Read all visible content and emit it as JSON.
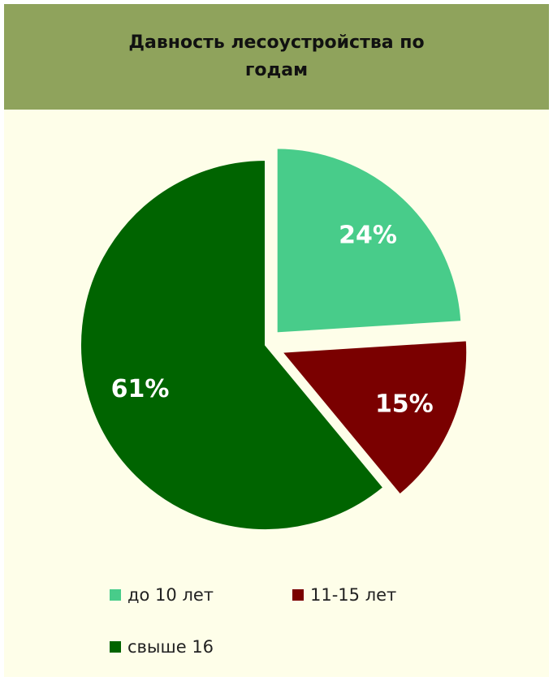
{
  "chart_data": {
    "type": "pie",
    "title": "Давность лесоустройства по годам",
    "categories": [
      "до 10 лет",
      "11-15 лет",
      "свыше 16"
    ],
    "values": [
      24,
      15,
      61
    ],
    "value_labels": [
      "24%",
      "15%",
      "61%"
    ],
    "colors": [
      "#48cc8a",
      "#7a0000",
      "#006400"
    ],
    "legend": "bottom"
  }
}
